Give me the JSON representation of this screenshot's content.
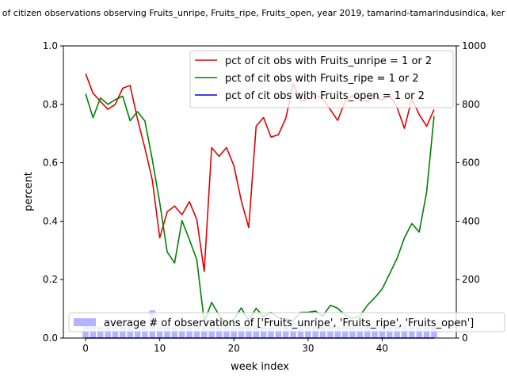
{
  "chart_data": {
    "type": "line",
    "title": "of citizen observations observing Fruits_unripe, Fruits_ripe, Fruits_open, year 2019, tamarind-tamarindusindica, ker",
    "xlabel": "week index",
    "ylabel": "percent",
    "xlim": [
      -3,
      50
    ],
    "ylim": [
      0,
      1.0
    ],
    "y2lim": [
      0,
      1000
    ],
    "x_ticks": [
      0,
      10,
      20,
      30,
      40
    ],
    "y_ticks": [
      0.0,
      0.2,
      0.4,
      0.6,
      0.8,
      1.0
    ],
    "y2_ticks": [
      0,
      200,
      400,
      600,
      800,
      1000
    ],
    "x_tick_labels": [
      "0",
      "10",
      "20",
      "30",
      "40"
    ],
    "y_tick_labels": [
      "0.0",
      "0.2",
      "0.4",
      "0.6",
      "0.8",
      "1.0"
    ],
    "y2_tick_labels": [
      "0",
      "200",
      "400",
      "600",
      "800",
      "1000"
    ],
    "grid": false,
    "legend_placement": "top-right",
    "bar_legend_placement": "lower-left",
    "x": [
      0,
      1,
      2,
      3,
      4,
      5,
      6,
      7,
      8,
      9,
      10,
      11,
      12,
      13,
      14,
      15,
      16,
      17,
      18,
      19,
      20,
      21,
      22,
      23,
      24,
      25,
      26,
      27,
      28,
      29,
      30,
      31,
      32,
      33,
      34,
      35,
      36,
      37,
      38,
      39,
      40,
      41,
      42,
      43,
      44,
      45,
      46,
      47
    ],
    "series": [
      {
        "name": "pct of cit obs with Fruits_unripe = 1 or 2",
        "color": "#e00000",
        "values": [
          0.905,
          0.838,
          0.81,
          0.783,
          0.8,
          0.855,
          0.865,
          0.75,
          0.65,
          0.54,
          0.343,
          0.432,
          0.452,
          0.422,
          0.467,
          0.405,
          0.228,
          0.652,
          0.622,
          0.652,
          0.59,
          0.47,
          0.378,
          0.725,
          0.755,
          0.688,
          0.696,
          0.752,
          0.87,
          0.81,
          0.82,
          0.83,
          0.82,
          0.782,
          0.745,
          0.81,
          0.83,
          0.815,
          0.81,
          0.83,
          0.815,
          0.83,
          0.79,
          0.718,
          0.818,
          0.765,
          0.725,
          0.782
        ]
      },
      {
        "name": "pct of cit obs with Fruits_ripe = 1 or 2",
        "color": "#008000",
        "values": [
          0.836,
          0.754,
          0.822,
          0.8,
          0.816,
          0.828,
          0.744,
          0.775,
          0.743,
          0.61,
          0.463,
          0.295,
          0.257,
          0.402,
          0.337,
          0.268,
          0.055,
          0.122,
          0.078,
          0.048,
          0.065,
          0.103,
          0.06,
          0.102,
          0.073,
          0.088,
          0.07,
          0.065,
          0.06,
          0.088,
          0.088,
          0.092,
          0.075,
          0.112,
          0.102,
          0.078,
          0.068,
          0.075,
          0.112,
          0.138,
          0.168,
          0.22,
          0.272,
          0.343,
          0.392,
          0.363,
          0.5,
          0.76
        ]
      },
      {
        "name": "pct of cit obs with Fruits_open = 1 or 2",
        "color": "#0000e0",
        "values": [
          0,
          0,
          0,
          0,
          0,
          0,
          0,
          0,
          0,
          0,
          0,
          0,
          0,
          0,
          0,
          0,
          0,
          0,
          0,
          0,
          0,
          0,
          0,
          0,
          0,
          0,
          0,
          0,
          0,
          0,
          0,
          0,
          0,
          0,
          0,
          0,
          0,
          0,
          0,
          0,
          0,
          0,
          0,
          0,
          0,
          0,
          0,
          0
        ]
      }
    ],
    "bars": {
      "name": "average # of observations of ['Fruits_unripe', 'Fruits_ripe', 'Fruits_open']",
      "color": "#b3b3ff",
      "values": [
        45,
        40,
        40,
        40,
        40,
        40,
        40,
        40,
        40,
        95,
        40,
        40,
        40,
        40,
        40,
        40,
        40,
        40,
        40,
        40,
        40,
        40,
        40,
        40,
        40,
        40,
        40,
        40,
        40,
        40,
        40,
        40,
        40,
        40,
        40,
        40,
        40,
        40,
        40,
        40,
        40,
        40,
        40,
        40,
        40,
        40,
        40,
        40
      ]
    }
  }
}
